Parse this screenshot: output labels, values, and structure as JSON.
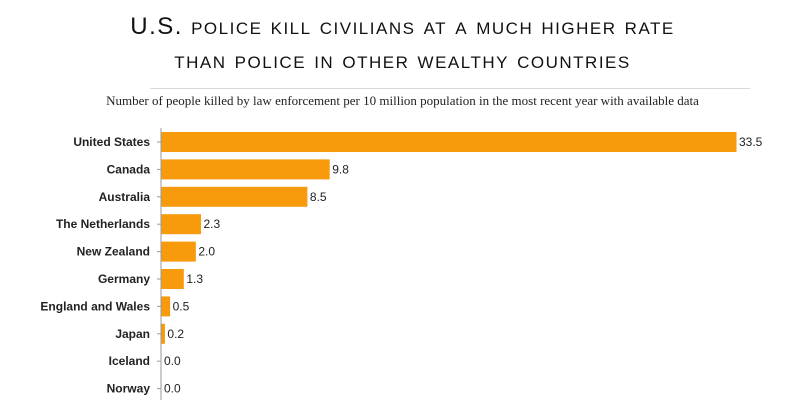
{
  "chart_data": {
    "type": "bar",
    "orientation": "horizontal",
    "title_line1": "U.S. police kill civilians at a much higher rate",
    "title_line2": "than police in other wealthy countries",
    "subtitle": "Number of people killed by law enforcement per 10 million population in the most recent year with available data",
    "categories": [
      "United States",
      "Canada",
      "Australia",
      "The Netherlands",
      "New Zealand",
      "Germany",
      "England and Wales",
      "Japan",
      "Iceland",
      "Norway"
    ],
    "values": [
      33.5,
      9.8,
      8.5,
      2.3,
      2.0,
      1.3,
      0.5,
      0.2,
      0.0,
      0.0
    ],
    "value_labels": [
      "33.5",
      "9.8",
      "8.5",
      "2.3",
      "2.0",
      "1.3",
      "0.5",
      "0.2",
      "0.0",
      "0.0"
    ],
    "xlim": [
      0,
      33.5
    ],
    "bar_color": "#F79A0C",
    "axis_color": "#9a9a9a"
  }
}
